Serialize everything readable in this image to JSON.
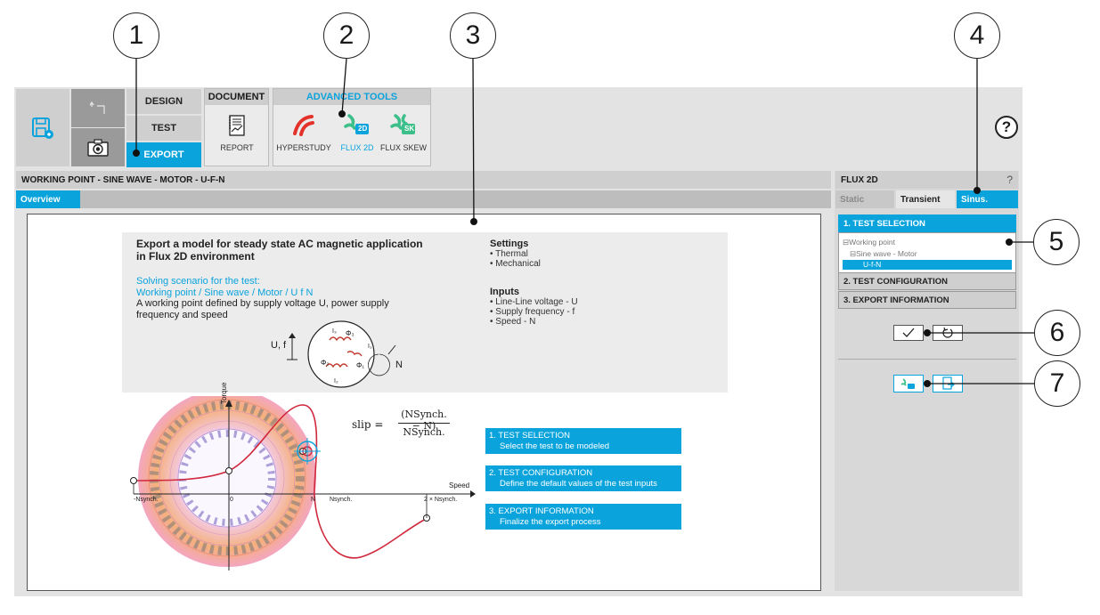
{
  "callouts": [
    "1",
    "2",
    "3",
    "4",
    "5",
    "6",
    "7"
  ],
  "ribbon": {
    "design": "DESIGN",
    "test": "TEST",
    "export": "EXPORT",
    "document_group": "DOCUMENT",
    "report": "REPORT",
    "advanced_group": "ADVANCED TOOLS",
    "hyperstudy": "HYPERSTUDY",
    "flux2d": "FLUX 2D",
    "fluxskew": "FLUX SKEW",
    "flux2d_badge": "2D",
    "fluxskew_badge": "SK",
    "help_glyph": "?"
  },
  "main": {
    "title": "WORKING POINT - SINE WAVE - MOTOR - U-F-N",
    "tab_overview": "Overview"
  },
  "doc": {
    "title_line1": "Export a model for steady state AC magnetic application",
    "title_line2": "in Flux 2D environment",
    "scenario_line1": "Solving scenario for the test:",
    "scenario_line2": "Working point / Sine wave / Motor / U f N",
    "desc_line1": "A working point defined by supply voltage U, power supply",
    "desc_line2": "frequency and speed",
    "settings_title": "Settings",
    "settings": [
      "Thermal",
      "Mechanical"
    ],
    "inputs_title": "Inputs",
    "inputs": [
      "Line-Line voltage - U",
      "Supply frequency - f",
      "Speed - N"
    ],
    "uf_label": "U, f",
    "n_label": "N",
    "phi3": "Φ₃",
    "phi2": "Φ₂",
    "phi1": "Φ₁",
    "i1": "I₁",
    "i2": "I₂",
    "i3": "I₃"
  },
  "graph": {
    "torque_label": "Torque",
    "speed_label": "Speed",
    "tick_neg_nsynch": "-Nsynch.",
    "tick_zero": "0",
    "tick_n": "N",
    "tick_nsynch": "Nsynch.",
    "tick_2nsynch": "2 × Nsynch.",
    "slip_lhs": "slip =",
    "slip_num": "(NSynch. − N)",
    "slip_den": "NSynch."
  },
  "steps": [
    {
      "title": "1. TEST SELECTION",
      "desc": "Select the test to be modeled"
    },
    {
      "title": "2. TEST CONFIGURATION",
      "desc": "Define the default values of the test inputs"
    },
    {
      "title": "3. EXPORT INFORMATION",
      "desc": "Finalize the export process"
    }
  ],
  "right_panel": {
    "title": "FLUX 2D",
    "help_glyph": "?",
    "tab_static": "Static",
    "tab_transient": "Transient",
    "tab_sinus": "Sinus.",
    "acc_test_selection": "1. TEST SELECTION",
    "tree_working_point": "⊟Working point",
    "tree_sine_motor": "⊟Sine wave - Motor",
    "tree_ufn": "U-f-N",
    "acc_test_config": "2. TEST CONFIGURATION",
    "acc_export_info": "3. EXPORT INFORMATION"
  },
  "colors": {
    "accent": "#0aa3dc",
    "curve": "#d0283c",
    "hyperstudy": "#e4322b",
    "flux_green": "#3dbf8a"
  }
}
